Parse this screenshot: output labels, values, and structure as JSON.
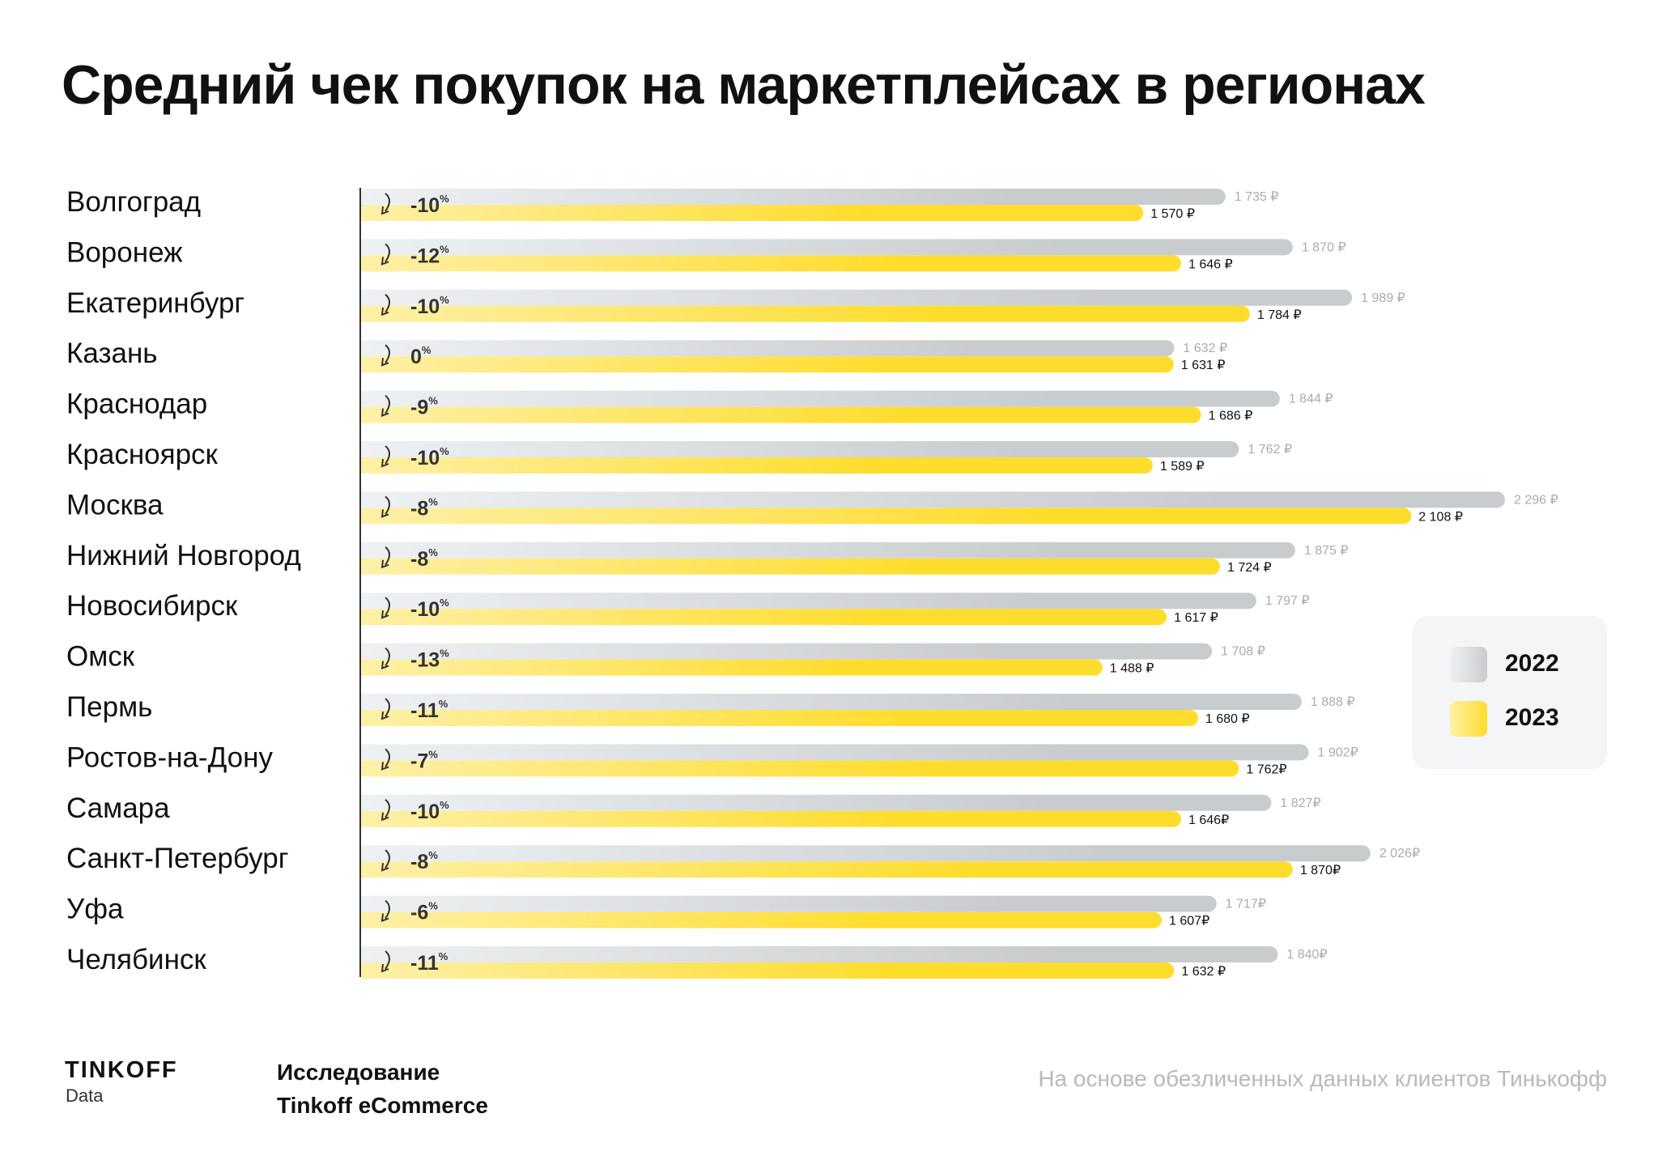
{
  "title": "Средний чек покупок на маркетплейсах в регионах",
  "chart_data": {
    "type": "bar",
    "orientation": "horizontal",
    "title": "Средний чек покупок на маркетплейсах в регионах",
    "categories": [
      "Волгоград",
      "Воронеж",
      "Екатеринбург",
      "Казань",
      "Краснодар",
      "Красноярск",
      "Москва",
      "Нижний Новгород",
      "Новосибирск",
      "Омск",
      "Пермь",
      "Ростов-на-Дону",
      "Самара",
      "Санкт-Петербург",
      "Уфа",
      "Челябинск"
    ],
    "series": [
      {
        "name": "2022",
        "color": "#c9cccf",
        "values": [
          1735,
          1870,
          1989,
          1632,
          1844,
          1762,
          2296,
          1875,
          1797,
          1708,
          1888,
          1902,
          1827,
          2026,
          1717,
          1840
        ],
        "labels": [
          "1 735 ₽",
          "1 870 ₽",
          "1 989 ₽",
          "1 632 ₽",
          "1 844 ₽",
          "1 762 ₽",
          "2 296 ₽",
          "1 875 ₽",
          "1 797 ₽",
          "1 708 ₽",
          "1 888 ₽",
          "1 902₽",
          "1 827₽",
          "2 026₽",
          "1 717₽",
          "1 840₽"
        ]
      },
      {
        "name": "2023",
        "color": "#ffdd2d",
        "values": [
          1570,
          1646,
          1784,
          1631,
          1686,
          1589,
          2108,
          1724,
          1617,
          1488,
          1680,
          1762,
          1646,
          1870,
          1607,
          1632
        ],
        "labels": [
          "1 570 ₽",
          "1 646 ₽",
          "1 784 ₽",
          "1 631 ₽",
          "1 686 ₽",
          "1 589 ₽",
          "2 108 ₽",
          "1 724 ₽",
          "1 617 ₽",
          "1 488 ₽",
          "1 680 ₽",
          "1 762₽",
          "1 646₽",
          "1 870₽",
          "1 607₽",
          "1 632 ₽"
        ]
      }
    ],
    "changes": [
      "-10",
      "-12",
      "-10",
      "0",
      "-9",
      "-10",
      "-8",
      "-8",
      "-10",
      "-13",
      "-11",
      "-7",
      "-10",
      "-8",
      "-6",
      "-11"
    ],
    "change_unit": "%",
    "change_icon": "curved-arrow-down-icon",
    "xlim": [
      0,
      2296
    ],
    "grid": false,
    "legend_position": "right"
  },
  "legend": {
    "items": [
      {
        "label": "2022"
      },
      {
        "label": "2023"
      }
    ]
  },
  "footer": {
    "logo": "TINKOFF",
    "logo_sub": "Data",
    "study_line1": "Исследование",
    "study_line2": "Tinkoff eCommerce",
    "note": "На основе обезличенных данных клиентов Тинькофф"
  }
}
